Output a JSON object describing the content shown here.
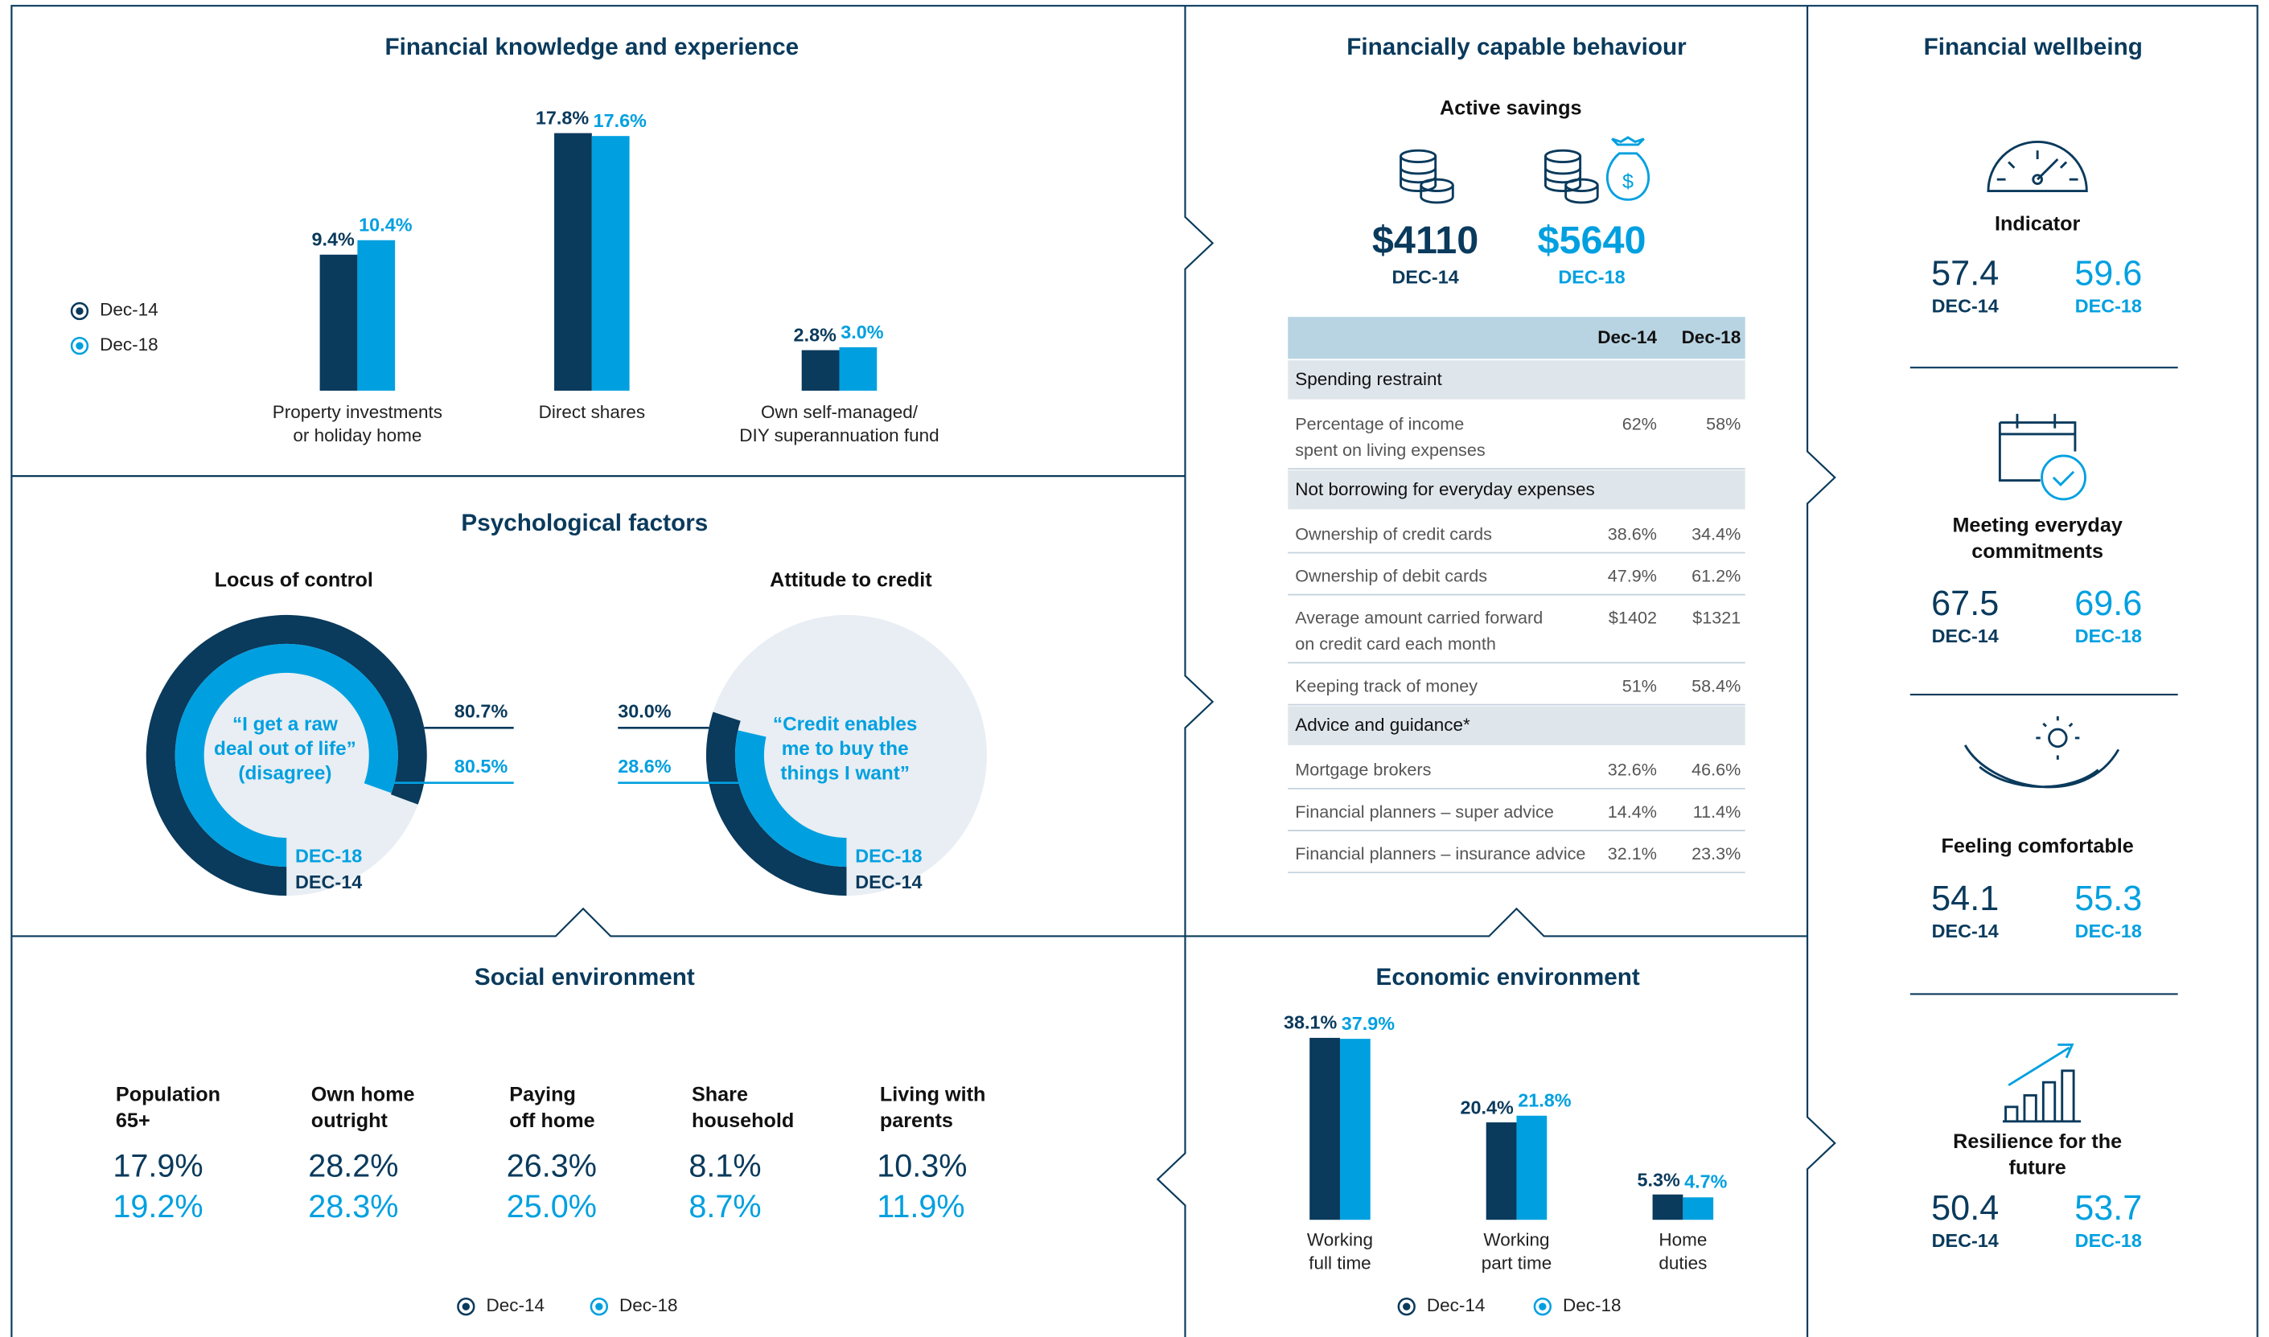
{
  "chart_data": [
    {
      "type": "bar",
      "title": "Financial knowledge and experience",
      "categories": [
        "Property investments\nor holiday home",
        "Direct shares",
        "Own self-managed/\nDIY superannuation fund"
      ],
      "series": [
        {
          "name": "Dec-14",
          "color": "#0a3a5c",
          "values": [
            9.4,
            17.8,
            2.8
          ],
          "value_labels": [
            "9.4%",
            "17.8%",
            "2.8%"
          ]
        },
        {
          "name": "Dec-18",
          "color": "#00a0e0",
          "values": [
            10.4,
            17.6,
            3.0
          ],
          "value_labels": [
            "10.4%",
            "17.6%",
            "3.0%"
          ]
        }
      ],
      "legend": "left"
    },
    {
      "type": "donut",
      "title": "Locus of control",
      "annotation": "“I get a raw\ndeal out of life”\n(disagree)",
      "series": [
        {
          "name": "DEC-14",
          "color": "#0a3a5c",
          "values": [
            80.7
          ],
          "value_labels": [
            "80.7%"
          ]
        },
        {
          "name": "DEC-18",
          "color": "#00a0e0",
          "values": [
            80.5
          ],
          "value_labels": [
            "80.5%"
          ]
        }
      ],
      "label_side": "right"
    },
    {
      "type": "donut",
      "title": "Attitude to credit",
      "annotation": "“Credit enables\nme to buy the\nthings I want”",
      "series": [
        {
          "name": "DEC-14",
          "color": "#0a3a5c",
          "values": [
            30.0
          ],
          "value_labels": [
            "30.0%"
          ]
        },
        {
          "name": "DEC-18",
          "color": "#00a0e0",
          "values": [
            28.6
          ],
          "value_labels": [
            "28.6%"
          ]
        }
      ],
      "label_side": "left"
    },
    {
      "type": "bar",
      "title": "Economic environment",
      "categories": [
        "Working\nfull time",
        "Working\npart time",
        "Home\nduties"
      ],
      "series": [
        {
          "name": "Dec-14",
          "color": "#0a3a5c",
          "values": [
            38.1,
            20.4,
            5.3
          ],
          "value_labels": [
            "38.1%",
            "20.4%",
            "5.3%"
          ]
        },
        {
          "name": "Dec-18",
          "color": "#00a0e0",
          "values": [
            37.9,
            21.8,
            4.7
          ],
          "value_labels": [
            "37.9%",
            "21.8%",
            "4.7%"
          ]
        }
      ],
      "legend": "bottom"
    }
  ],
  "sections": {
    "psychological": "Psychological factors",
    "social": "Social environment",
    "behaviour": "Financially capable behaviour",
    "wellbeing": "Financial wellbeing"
  },
  "social": {
    "legend": [
      "Dec-14",
      "Dec-18"
    ],
    "items": [
      {
        "label": "Population\n65+",
        "values": [
          "17.9%",
          "19.2%"
        ]
      },
      {
        "label": "Own home\noutright",
        "values": [
          "28.2%",
          "28.3%"
        ]
      },
      {
        "label": "Paying\noff home",
        "values": [
          "26.3%",
          "25.0%"
        ]
      },
      {
        "label": "Share\nhousehold",
        "values": [
          "8.1%",
          "8.7%"
        ]
      },
      {
        "label": "Living with\nparents",
        "values": [
          "10.3%",
          "11.9%"
        ]
      }
    ]
  },
  "savings": {
    "title": "Active savings",
    "items": [
      {
        "value": "$4110",
        "period": "DEC-14"
      },
      {
        "value": "$5640",
        "period": "DEC-18"
      }
    ]
  },
  "table": {
    "columns": [
      "Dec-14",
      "Dec-18"
    ],
    "rows": [
      {
        "section": "Spending restraint"
      },
      {
        "label": "Percentage of income\nspent on living expenses",
        "values": [
          "62%",
          "58%"
        ]
      },
      {
        "section": "Not borrowing for everyday expenses"
      },
      {
        "label": "Ownership of credit cards",
        "values": [
          "38.6%",
          "34.4%"
        ]
      },
      {
        "label": "Ownership of debit cards",
        "values": [
          "47.9%",
          "61.2%"
        ]
      },
      {
        "label": "Average amount carried forward\non credit card each month",
        "values": [
          "$1402",
          "$1321"
        ]
      },
      {
        "label": "Keeping track of money",
        "values": [
          "51%",
          "58.4%"
        ]
      },
      {
        "section": "Advice and guidance*"
      },
      {
        "label": "Mortgage brokers",
        "values": [
          "32.6%",
          "46.6%"
        ]
      },
      {
        "label": "Financial planners – super advice",
        "values": [
          "14.4%",
          "11.4%"
        ]
      },
      {
        "label": "Financial planners – insurance advice",
        "values": [
          "32.1%",
          "23.3%"
        ]
      }
    ]
  },
  "wellbeing": {
    "periods": [
      "DEC-14",
      "DEC-18"
    ],
    "items": [
      {
        "label": "Indicator",
        "values": [
          "57.4",
          "59.6"
        ]
      },
      {
        "label": "Meeting everyday\ncommitments",
        "values": [
          "67.5",
          "69.6"
        ]
      },
      {
        "label": "Feeling comfortable",
        "values": [
          "54.1",
          "55.3"
        ]
      },
      {
        "label": "Resilience for the future",
        "values": [
          "50.4",
          "53.7"
        ]
      }
    ]
  }
}
